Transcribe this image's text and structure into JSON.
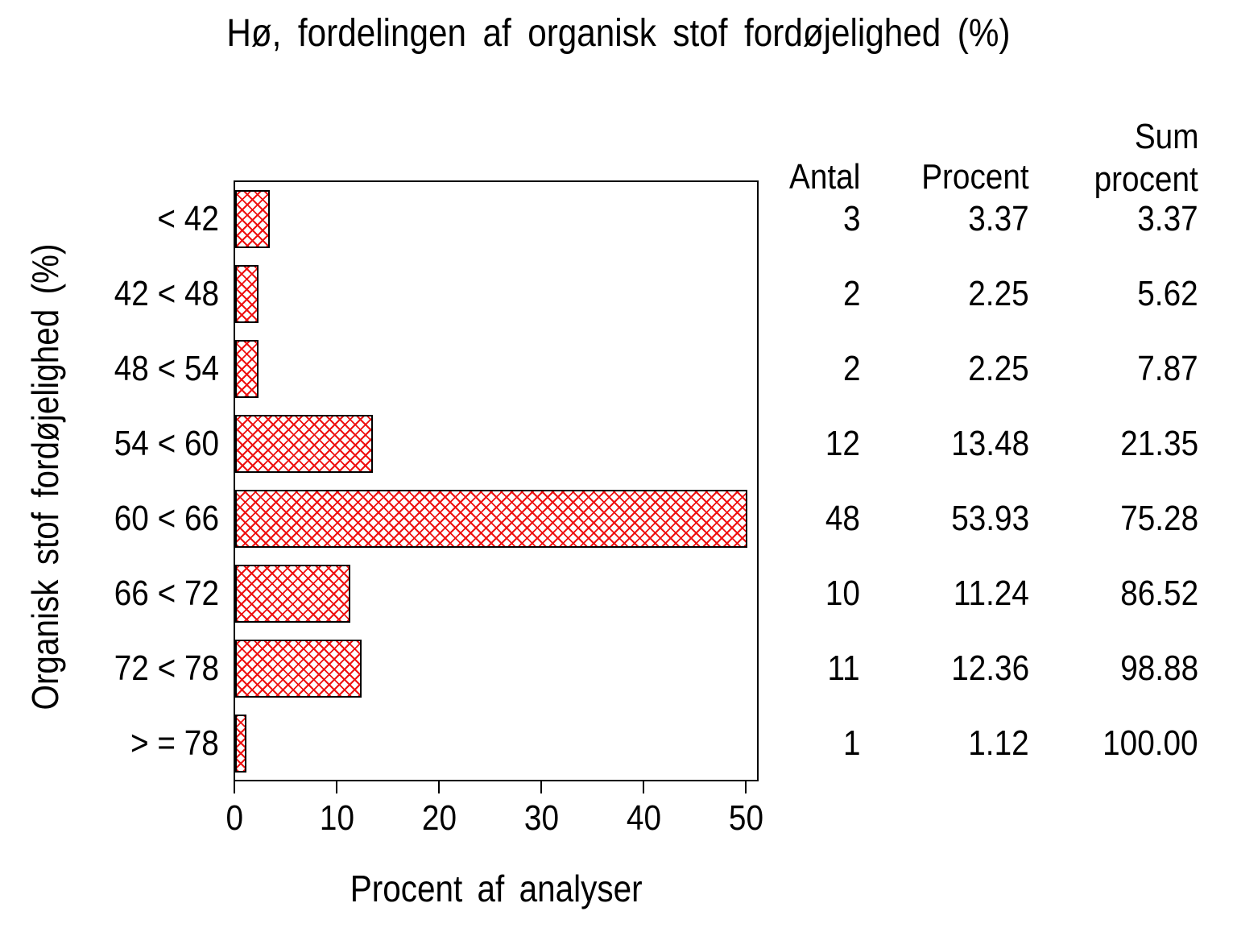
{
  "page": {
    "background": "#ffffff",
    "text_color": "#000000"
  },
  "title": "Hø, fordelingen af organisk stof fordøjelighed (%)",
  "axis": {
    "y_title": "Organisk stof fordøjelighed (%)",
    "x_title": "Procent af analyser"
  },
  "table": {
    "headers": {
      "antal": "Antal",
      "procent": "Procent",
      "sum_line1": "Sum",
      "sum_line2": "procent"
    },
    "rows": [
      {
        "antal": "3",
        "procent": "3.37",
        "sum": "3.37"
      },
      {
        "antal": "2",
        "procent": "2.25",
        "sum": "5.62"
      },
      {
        "antal": "2",
        "procent": "2.25",
        "sum": "7.87"
      },
      {
        "antal": "12",
        "procent": "13.48",
        "sum": "21.35"
      },
      {
        "antal": "48",
        "procent": "53.93",
        "sum": "75.28"
      },
      {
        "antal": "10",
        "procent": "11.24",
        "sum": "86.52"
      },
      {
        "antal": "11",
        "procent": "12.36",
        "sum": "98.88"
      },
      {
        "antal": "1",
        "procent": "1.12",
        "sum": "100.00"
      }
    ]
  },
  "chart_data": {
    "type": "bar",
    "orientation": "horizontal",
    "title": "Hø, fordelingen af organisk stof fordøjelighed (%)",
    "xlabel": "Procent af analyser",
    "ylabel": "Organisk stof fordøjelighed (%)",
    "categories": [
      "< 42",
      "42 < 48",
      "48 < 54",
      "54 < 60",
      "60 < 66",
      "66 < 72",
      "72 < 78",
      "> = 78"
    ],
    "values": [
      3.37,
      2.25,
      2.25,
      13.48,
      53.93,
      11.24,
      12.36,
      1.12
    ],
    "counts": [
      3,
      2,
      2,
      12,
      48,
      10,
      11,
      1
    ],
    "cum_percent": [
      3.37,
      5.62,
      7.87,
      21.35,
      75.28,
      86.52,
      98.88,
      100.0
    ],
    "x_ticks": [
      0,
      10,
      20,
      30,
      40,
      50
    ],
    "xlim": [
      0,
      51.2
    ],
    "bar_display_clip": 50.1,
    "grid": false,
    "legend": "none",
    "bar_color": "#ee1111",
    "bar_border_color": "#000000",
    "hatch": "diagonal-crosshatch"
  }
}
